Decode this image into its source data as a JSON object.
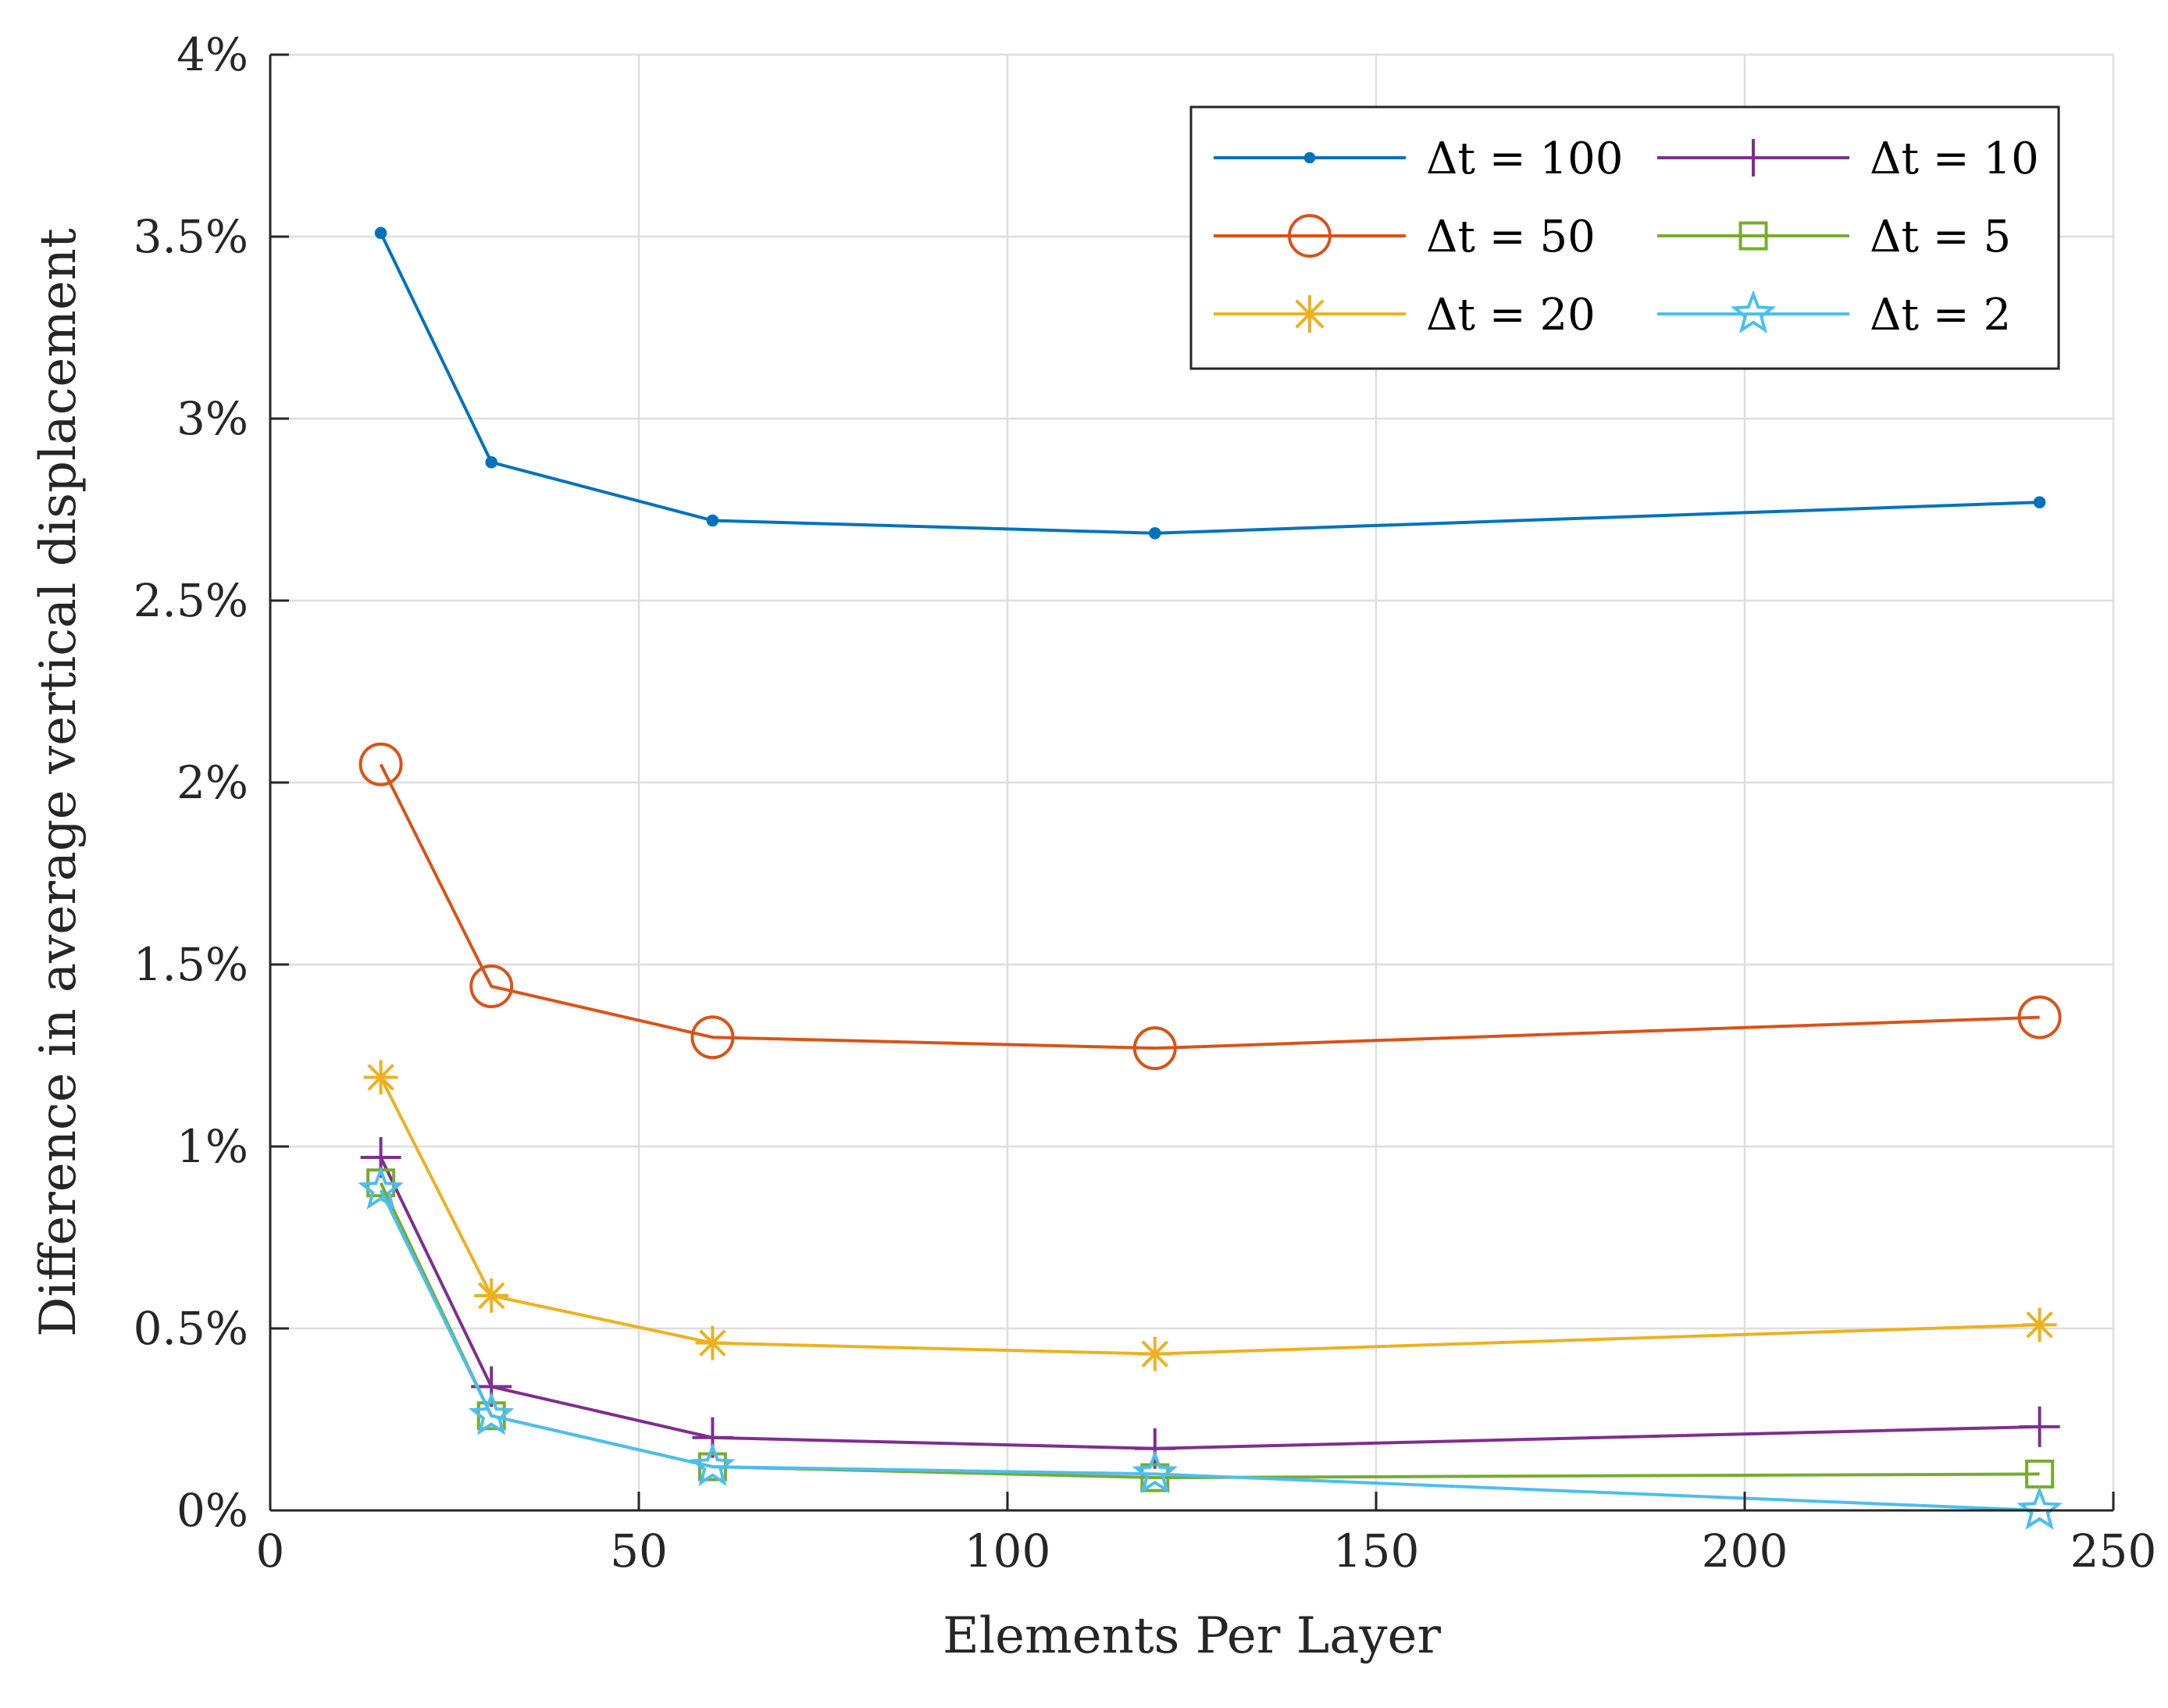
{
  "chart_data": {
    "type": "line",
    "title": "",
    "xlabel": "Elements Per Layer",
    "ylabel": "Difference in average vertical displacement",
    "xlim": [
      0,
      250
    ],
    "ylim": [
      0,
      4
    ],
    "xticks": [
      0,
      50,
      100,
      150,
      200,
      250
    ],
    "xtick_labels": [
      "0",
      "50",
      "100",
      "150",
      "200",
      "250"
    ],
    "yticks": [
      0,
      0.5,
      1,
      1.5,
      2,
      2.5,
      3,
      3.5,
      4
    ],
    "ytick_labels": [
      "0%",
      "0.5%",
      "1%",
      "1.5%",
      "2%",
      "2.5%",
      "3%",
      "3.5%",
      "4%"
    ],
    "grid": true,
    "legend_position": "top-right",
    "x": [
      15,
      30,
      60,
      120,
      240
    ],
    "series": [
      {
        "name": "Δt = 100",
        "color": "#0072BD",
        "marker": "dot",
        "values": [
          3.51,
          2.88,
          2.72,
          2.685,
          2.77
        ]
      },
      {
        "name": "Δt = 50",
        "color": "#D95319",
        "marker": "circle",
        "values": [
          2.05,
          1.44,
          1.3,
          1.27,
          1.355
        ]
      },
      {
        "name": "Δt = 20",
        "color": "#EDB120",
        "marker": "asterisk",
        "values": [
          1.19,
          0.59,
          0.46,
          0.43,
          0.51
        ]
      },
      {
        "name": "Δt = 10",
        "color": "#7E2F8E",
        "marker": "plus",
        "values": [
          0.97,
          0.34,
          0.2,
          0.17,
          0.23
        ]
      },
      {
        "name": "Δt = 5",
        "color": "#77AC30",
        "marker": "square",
        "values": [
          0.9,
          0.26,
          0.12,
          0.09,
          0.1
        ]
      },
      {
        "name": "Δt = 2",
        "color": "#4DBEEE",
        "marker": "pentagram",
        "values": [
          0.88,
          0.26,
          0.12,
          0.1,
          0.0
        ]
      }
    ]
  }
}
